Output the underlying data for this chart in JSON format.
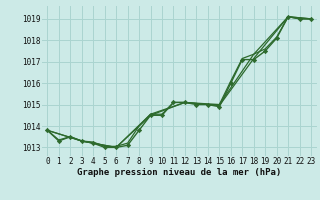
{
  "background_color": "#cceae7",
  "grid_color": "#aad4d0",
  "line_color": "#2d6a2d",
  "title": "Graphe pression niveau de la mer (hPa)",
  "ylabel_ticks": [
    1013,
    1014,
    1015,
    1016,
    1017,
    1018,
    1019
  ],
  "xlim": [
    -0.5,
    23.5
  ],
  "ylim": [
    1012.6,
    1019.6
  ],
  "series": [
    {
      "x": [
        0,
        1,
        2,
        3,
        4,
        5,
        6,
        7,
        8,
        9,
        10,
        11,
        12,
        13,
        14,
        15,
        16,
        17,
        18,
        19,
        20,
        21,
        22,
        23
      ],
      "y": [
        1013.8,
        1013.3,
        1013.5,
        1013.3,
        1013.2,
        1013.0,
        1013.0,
        1013.1,
        1013.8,
        1014.5,
        1014.5,
        1015.1,
        1015.1,
        1015.0,
        1015.0,
        1014.9,
        1016.0,
        1017.1,
        1017.1,
        1017.5,
        1018.1,
        1019.1,
        1019.0,
        1019.0
      ],
      "marker": "D",
      "markersize": 2.2,
      "linewidth": 1.0,
      "has_marker": true
    },
    {
      "x": [
        0,
        1,
        2,
        3,
        4,
        5,
        6,
        7,
        8,
        9,
        10,
        11,
        12,
        13,
        14,
        15,
        16,
        17,
        18,
        19,
        20,
        21,
        22,
        23
      ],
      "y": [
        1013.8,
        1013.35,
        1013.5,
        1013.3,
        1013.25,
        1013.05,
        1013.05,
        1013.2,
        1014.0,
        1014.55,
        1014.55,
        1015.1,
        1015.1,
        1015.05,
        1015.0,
        1015.0,
        1016.1,
        1017.15,
        1017.35,
        1017.6,
        1018.15,
        1019.1,
        1019.0,
        1019.0
      ],
      "marker": "None",
      "markersize": 0,
      "linewidth": 0.9,
      "has_marker": false
    },
    {
      "x": [
        0,
        3,
        6,
        9,
        12,
        15,
        18,
        21,
        23
      ],
      "y": [
        1013.8,
        1013.3,
        1013.0,
        1014.5,
        1015.1,
        1014.95,
        1017.15,
        1019.1,
        1019.0
      ],
      "marker": "None",
      "markersize": 0,
      "linewidth": 0.9,
      "has_marker": false
    },
    {
      "x": [
        0,
        3,
        6,
        9,
        12,
        15,
        18,
        21,
        23
      ],
      "y": [
        1013.8,
        1013.3,
        1013.0,
        1014.55,
        1015.1,
        1015.0,
        1017.35,
        1019.1,
        1019.0
      ],
      "marker": "None",
      "markersize": 0,
      "linewidth": 0.9,
      "has_marker": false
    }
  ],
  "tick_fontsize": 5.5,
  "title_fontsize": 6.5
}
